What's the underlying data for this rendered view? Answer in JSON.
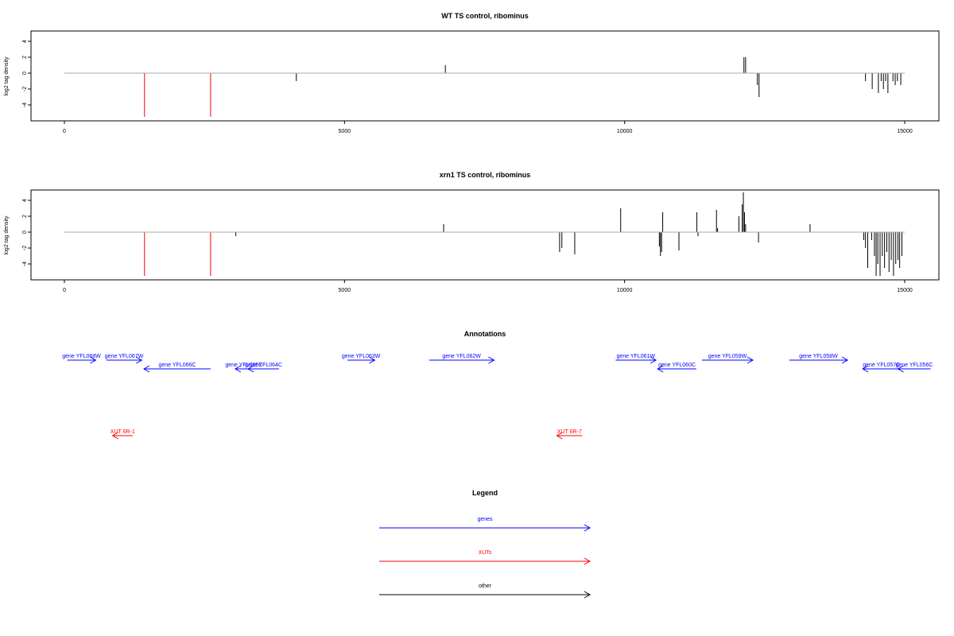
{
  "colors": {
    "genes": "#0000ff",
    "xuts": "#ff0000",
    "other": "#000000",
    "baseline": "#aaaaaa"
  },
  "chart_data": [
    {
      "type": "bar",
      "title": "WT TS control, ribominus",
      "ylabel": "log2 tag density",
      "xlim": [
        0,
        15000
      ],
      "ylim": [
        -5.5,
        5.5
      ],
      "xticks": [
        "0",
        "5000",
        "10000",
        "15000"
      ],
      "yticks": [
        "-4",
        "-2",
        "0",
        "2",
        "4"
      ],
      "red_bars": [
        [
          1430,
          -5.5
        ],
        [
          2610,
          -5.5
        ]
      ],
      "black_bars": [
        [
          4140,
          -1.0
        ],
        [
          6800,
          1.0
        ],
        [
          12130,
          2.0
        ],
        [
          12160,
          2.0
        ],
        [
          12370,
          -1.5
        ],
        [
          12400,
          -3.0
        ],
        [
          14300,
          -1.0
        ],
        [
          14420,
          -2.0
        ],
        [
          14530,
          -2.5
        ],
        [
          14580,
          -1.0
        ],
        [
          14620,
          -2.0
        ],
        [
          14660,
          -1.0
        ],
        [
          14700,
          -2.5
        ],
        [
          14790,
          -1.0
        ],
        [
          14830,
          -1.5
        ],
        [
          14870,
          -1.0
        ],
        [
          14930,
          -1.5
        ]
      ]
    },
    {
      "type": "bar",
      "title": "xrn1 TS control, ribominus",
      "ylabel": "log2 tag density",
      "xlim": [
        0,
        15000
      ],
      "ylim": [
        -5.5,
        5.5
      ],
      "xticks": [
        "0",
        "5000",
        "10000",
        "15000"
      ],
      "yticks": [
        "-4",
        "-2",
        "0",
        "2",
        "4"
      ],
      "red_bars": [
        [
          1430,
          -5.5
        ],
        [
          2610,
          -5.5
        ]
      ],
      "black_bars": [
        [
          3060,
          -0.5
        ],
        [
          6770,
          1.0
        ],
        [
          8840,
          -2.5
        ],
        [
          8880,
          -2.0
        ],
        [
          9110,
          -2.8
        ],
        [
          9930,
          3.0
        ],
        [
          10620,
          -1.8
        ],
        [
          10640,
          -3.0
        ],
        [
          10660,
          -2.5
        ],
        [
          10680,
          2.5
        ],
        [
          10970,
          -2.3
        ],
        [
          11290,
          2.5
        ],
        [
          11310,
          -0.5
        ],
        [
          11640,
          2.8
        ],
        [
          11660,
          0.5
        ],
        [
          12040,
          2.0
        ],
        [
          12100,
          3.5
        ],
        [
          12120,
          5.0
        ],
        [
          12140,
          2.5
        ],
        [
          12160,
          1.0
        ],
        [
          12390,
          -1.3
        ],
        [
          13310,
          1.0
        ],
        [
          14270,
          -1.0
        ],
        [
          14300,
          -2.0
        ],
        [
          14340,
          -4.5
        ],
        [
          14410,
          -1.0
        ],
        [
          14460,
          -3.0
        ],
        [
          14490,
          -5.5
        ],
        [
          14520,
          -4.0
        ],
        [
          14560,
          -5.5
        ],
        [
          14600,
          -3.0
        ],
        [
          14640,
          -4.5
        ],
        [
          14680,
          -2.5
        ],
        [
          14720,
          -5.0
        ],
        [
          14760,
          -3.5
        ],
        [
          14800,
          -5.5
        ],
        [
          14840,
          -4.0
        ],
        [
          14880,
          -3.5
        ],
        [
          14910,
          -4.5
        ],
        [
          14950,
          -3.0
        ]
      ]
    }
  ],
  "annotations": {
    "title": "Annotations",
    "genes": [
      {
        "label": "gene YFL068W",
        "start": 50,
        "end": 560,
        "dir": "right",
        "row": 0
      },
      {
        "label": "gene YFL067W",
        "start": 750,
        "end": 1380,
        "dir": "right",
        "row": 0
      },
      {
        "label": "gene YFL066C",
        "start": 1420,
        "end": 2610,
        "dir": "left",
        "row": 1
      },
      {
        "label": "gene YFL065C",
        "start": 3050,
        "end": 3360,
        "dir": "left",
        "row": 1
      },
      {
        "label": "gene YFL064C",
        "start": 3280,
        "end": 3830,
        "dir": "left",
        "row": 1
      },
      {
        "label": "gene YFL063W",
        "start": 5050,
        "end": 5540,
        "dir": "right",
        "row": 0
      },
      {
        "label": "gene YFL062W",
        "start": 6510,
        "end": 7670,
        "dir": "right",
        "row": 0
      },
      {
        "label": "gene YFL061W",
        "start": 9840,
        "end": 10560,
        "dir": "right",
        "row": 0
      },
      {
        "label": "gene YFL060C",
        "start": 10590,
        "end": 11280,
        "dir": "left",
        "row": 1
      },
      {
        "label": "gene YFL059W",
        "start": 11380,
        "end": 12290,
        "dir": "right",
        "row": 0
      },
      {
        "label": "gene YFL058W",
        "start": 12940,
        "end": 13980,
        "dir": "right",
        "row": 0
      },
      {
        "label": "gene YFL057C",
        "start": 14250,
        "end": 14920,
        "dir": "left",
        "row": 1
      },
      {
        "label": "gene YFL056C",
        "start": 14880,
        "end": 15460,
        "dir": "left",
        "row": 1
      }
    ],
    "xuts": [
      {
        "label": "XUT 6R-1",
        "start": 860,
        "end": 1220,
        "dir": "left"
      },
      {
        "label": "XUT 6R-7",
        "start": 8790,
        "end": 9240,
        "dir": "left"
      }
    ]
  },
  "legend": {
    "title": "Legend",
    "items": [
      {
        "label": "genes",
        "color": "#0000ff"
      },
      {
        "label": "XUTs",
        "color": "#ff0000"
      },
      {
        "label": "other",
        "color": "#000000"
      }
    ]
  }
}
